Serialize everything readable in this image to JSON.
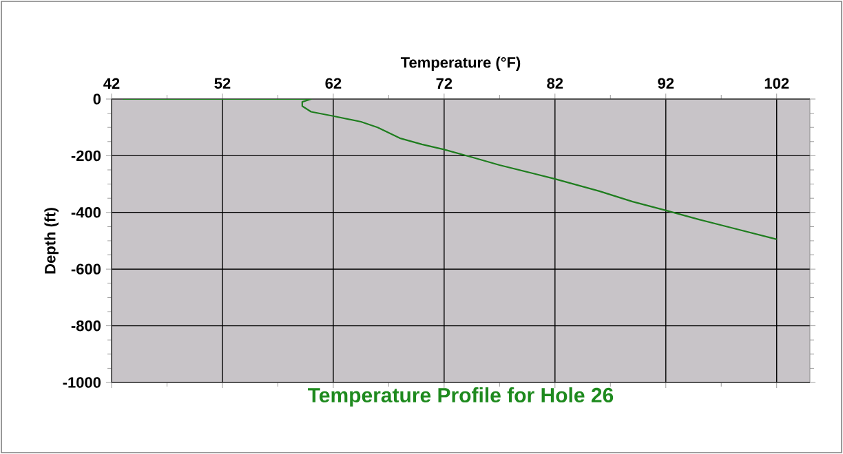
{
  "chart_data": {
    "type": "line",
    "title": "Temperature Profile for Hole 26",
    "xlabel": "Temperature (°F)",
    "ylabel": "Depth (ft)",
    "xlim": [
      42,
      105
    ],
    "ylim": [
      -1000,
      0
    ],
    "xticks": [
      42,
      52,
      62,
      72,
      82,
      92,
      102
    ],
    "yticks": [
      -1000,
      -800,
      -600,
      -400,
      -200,
      0
    ],
    "grid": true,
    "marker": "none",
    "line_style": "solid",
    "series": [
      {
        "color": "#1e7d1e",
        "x": [
          43,
          51,
          56,
          59.5,
          60,
          59.2,
          59.2,
          60,
          62,
          64.5,
          66,
          68,
          70,
          72,
          74.5,
          77,
          80,
          82,
          86,
          89,
          92,
          95,
          98.5,
          102
        ],
        "values": [
          0,
          0,
          0,
          0,
          0,
          -10,
          -25,
          -45,
          -60,
          -80,
          -100,
          -138,
          -160,
          -178,
          -205,
          -233,
          -262,
          -282,
          -325,
          -362,
          -393,
          -425,
          -460,
          -495
        ]
      }
    ]
  }
}
